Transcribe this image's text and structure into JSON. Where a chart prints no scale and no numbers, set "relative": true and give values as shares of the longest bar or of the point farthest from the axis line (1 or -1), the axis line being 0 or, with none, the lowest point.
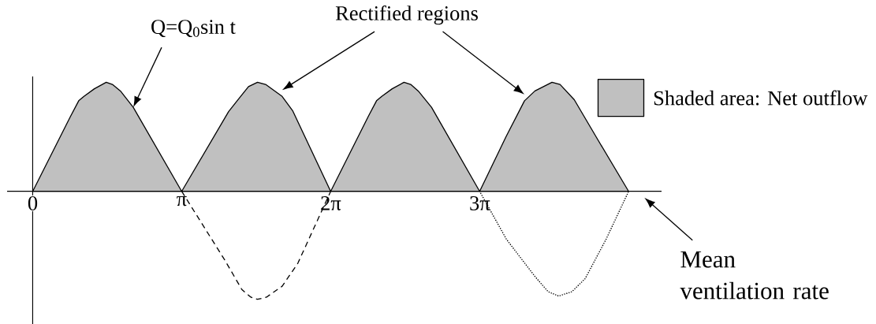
{
  "chart_data": {
    "type": "area",
    "relative": true,
    "xlim": [
      -0.54,
      13.26
    ],
    "xticks": [
      0,
      {
        "value": 3.1416,
        "label": "π"
      },
      {
        "value": 6.2832,
        "label": "2π"
      },
      {
        "value": 9.4248,
        "label": "3π"
      }
    ],
    "tick_labels": "x",
    "legend": "top right",
    "annotations": [
      "Q=Q$_{0}$sin t",
      "Rectified regions",
      "Mean ventilation rate"
    ],
    "series": [
      {
        "name": "Shaded area: Net outflow",
        "color": "#c0c0c0",
        "x": [
          0,
          0.8,
          0.97,
          1.08,
          1.3,
          1.55,
          1.68,
          1.85,
          2.12,
          3.1416,
          4.13,
          4.33,
          4.55,
          4.74,
          4.91,
          5.26,
          5.48,
          6.2832,
          7.08,
          7.25,
          7.36,
          7.58,
          7.83,
          7.97,
          8.13,
          8.41,
          9.4248,
          9.98,
          10.37,
          10.59,
          10.95,
          11.12,
          11.42,
          11.88,
          12.566
        ],
        "values": [
          0,
          0.69,
          0.83,
          0.87,
          0.94,
          1,
          0.98,
          0.92,
          0.77,
          0,
          0.73,
          0.84,
          0.96,
          1,
          0.98,
          0.87,
          0.74,
          0,
          0.69,
          0.83,
          0.87,
          0.94,
          1,
          0.98,
          0.92,
          0.77,
          0,
          0.5,
          0.83,
          0.92,
          1,
          0.98,
          0.84,
          0.5,
          0
        ]
      },
      {
        "type": "line",
        "line_style": "dashed",
        "color": "#000000",
        "x": [
          3.1416,
          4.05,
          4.41,
          4.6,
          4.74,
          4.93,
          5.26,
          5.59,
          6.2832
        ],
        "values": [
          0,
          -0.63,
          -0.9,
          -0.97,
          -0.99,
          -0.97,
          -0.87,
          -0.66,
          0
        ]
      },
      {
        "type": "line",
        "line_style": "dotted",
        "color": "#000000",
        "x": [
          9.4248,
          9.99,
          10.59,
          10.87,
          11.09,
          11.37,
          11.65,
          12.09,
          12.566
        ],
        "values": [
          0,
          -0.44,
          -0.78,
          -0.92,
          -0.96,
          -0.92,
          -0.8,
          -0.44,
          0
        ]
      }
    ]
  }
}
